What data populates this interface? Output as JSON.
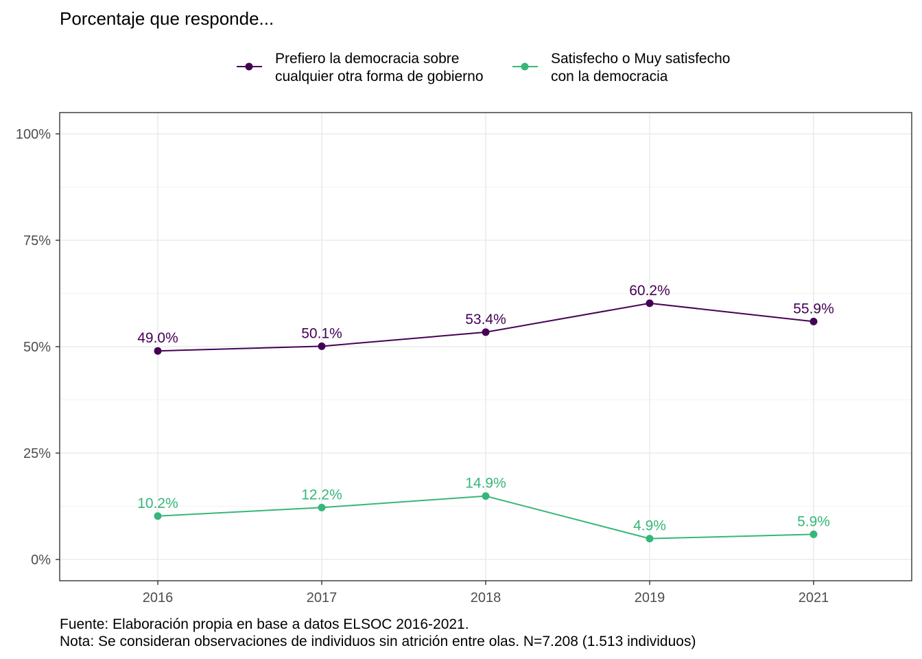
{
  "chart_data": {
    "type": "line",
    "title": "Porcentaje que responde...",
    "x": [
      "2016",
      "2017",
      "2018",
      "2019",
      "2021"
    ],
    "ylim": [
      0,
      100
    ],
    "y_ticks": [
      0,
      25,
      50,
      75,
      100
    ],
    "y_tick_labels": [
      "0%",
      "25%",
      "50%",
      "75%",
      "100%"
    ],
    "grid": true,
    "legend_position": "top",
    "series": [
      {
        "name_lines": [
          "Prefiero la democracia sobre",
          "cualquier otra forma de gobierno"
        ],
        "values": [
          49.0,
          50.1,
          53.4,
          60.2,
          55.9
        ],
        "labels": [
          "49.0%",
          "50.1%",
          "53.4%",
          "60.2%",
          "55.9%"
        ],
        "color": "#440154"
      },
      {
        "name_lines": [
          "Satisfecho o Muy satisfecho",
          "con la democracia"
        ],
        "values": [
          10.2,
          12.2,
          14.9,
          4.9,
          5.9
        ],
        "labels": [
          "10.2%",
          "12.2%",
          "14.9%",
          "4.9%",
          "5.9%"
        ],
        "color": "#35b779"
      }
    ],
    "caption_lines": [
      "Fuente: Elaboración propia en base a datos ELSOC 2016-2021.",
      "Nota: Se consideran observaciones de individuos sin atrición entre olas. N=7.208 (1.513 individuos)"
    ]
  }
}
